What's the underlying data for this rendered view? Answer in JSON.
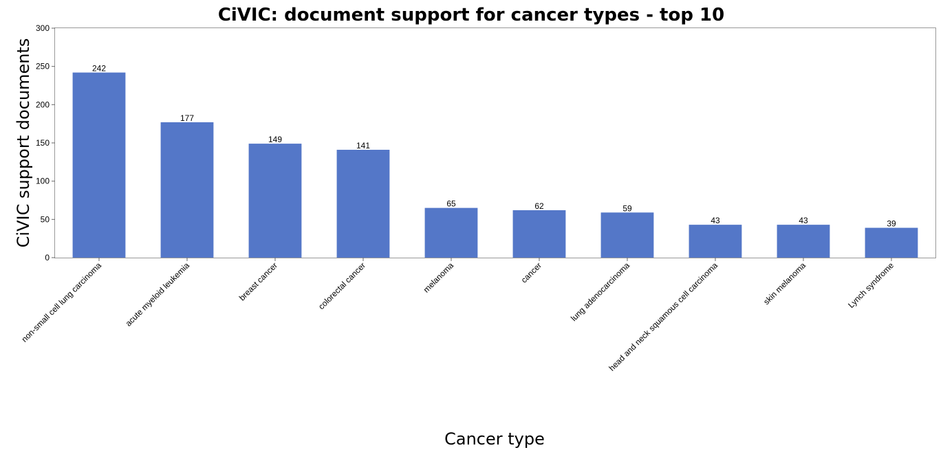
{
  "chart_data": {
    "type": "bar",
    "title": "CiVIC: document support for cancer types - top 10",
    "xlabel": "Cancer type",
    "ylabel": "CiVIC support documents",
    "ylim": [
      0,
      300
    ],
    "yticks": [
      0,
      50,
      100,
      150,
      200,
      250,
      300
    ],
    "categories": [
      "non-small cell lung carcinoma",
      "acute myeloid leukemia",
      "breast cancer",
      "colorectal cancer",
      "melanoma",
      "cancer",
      "lung adenocarcinoma",
      "head and neck squamous cell carcinoma",
      "skin melanoma",
      "Lynch syndrome"
    ],
    "values": [
      242,
      177,
      149,
      141,
      65,
      62,
      59,
      43,
      43,
      39
    ],
    "bar_color": "#5477c8",
    "grid": false
  }
}
